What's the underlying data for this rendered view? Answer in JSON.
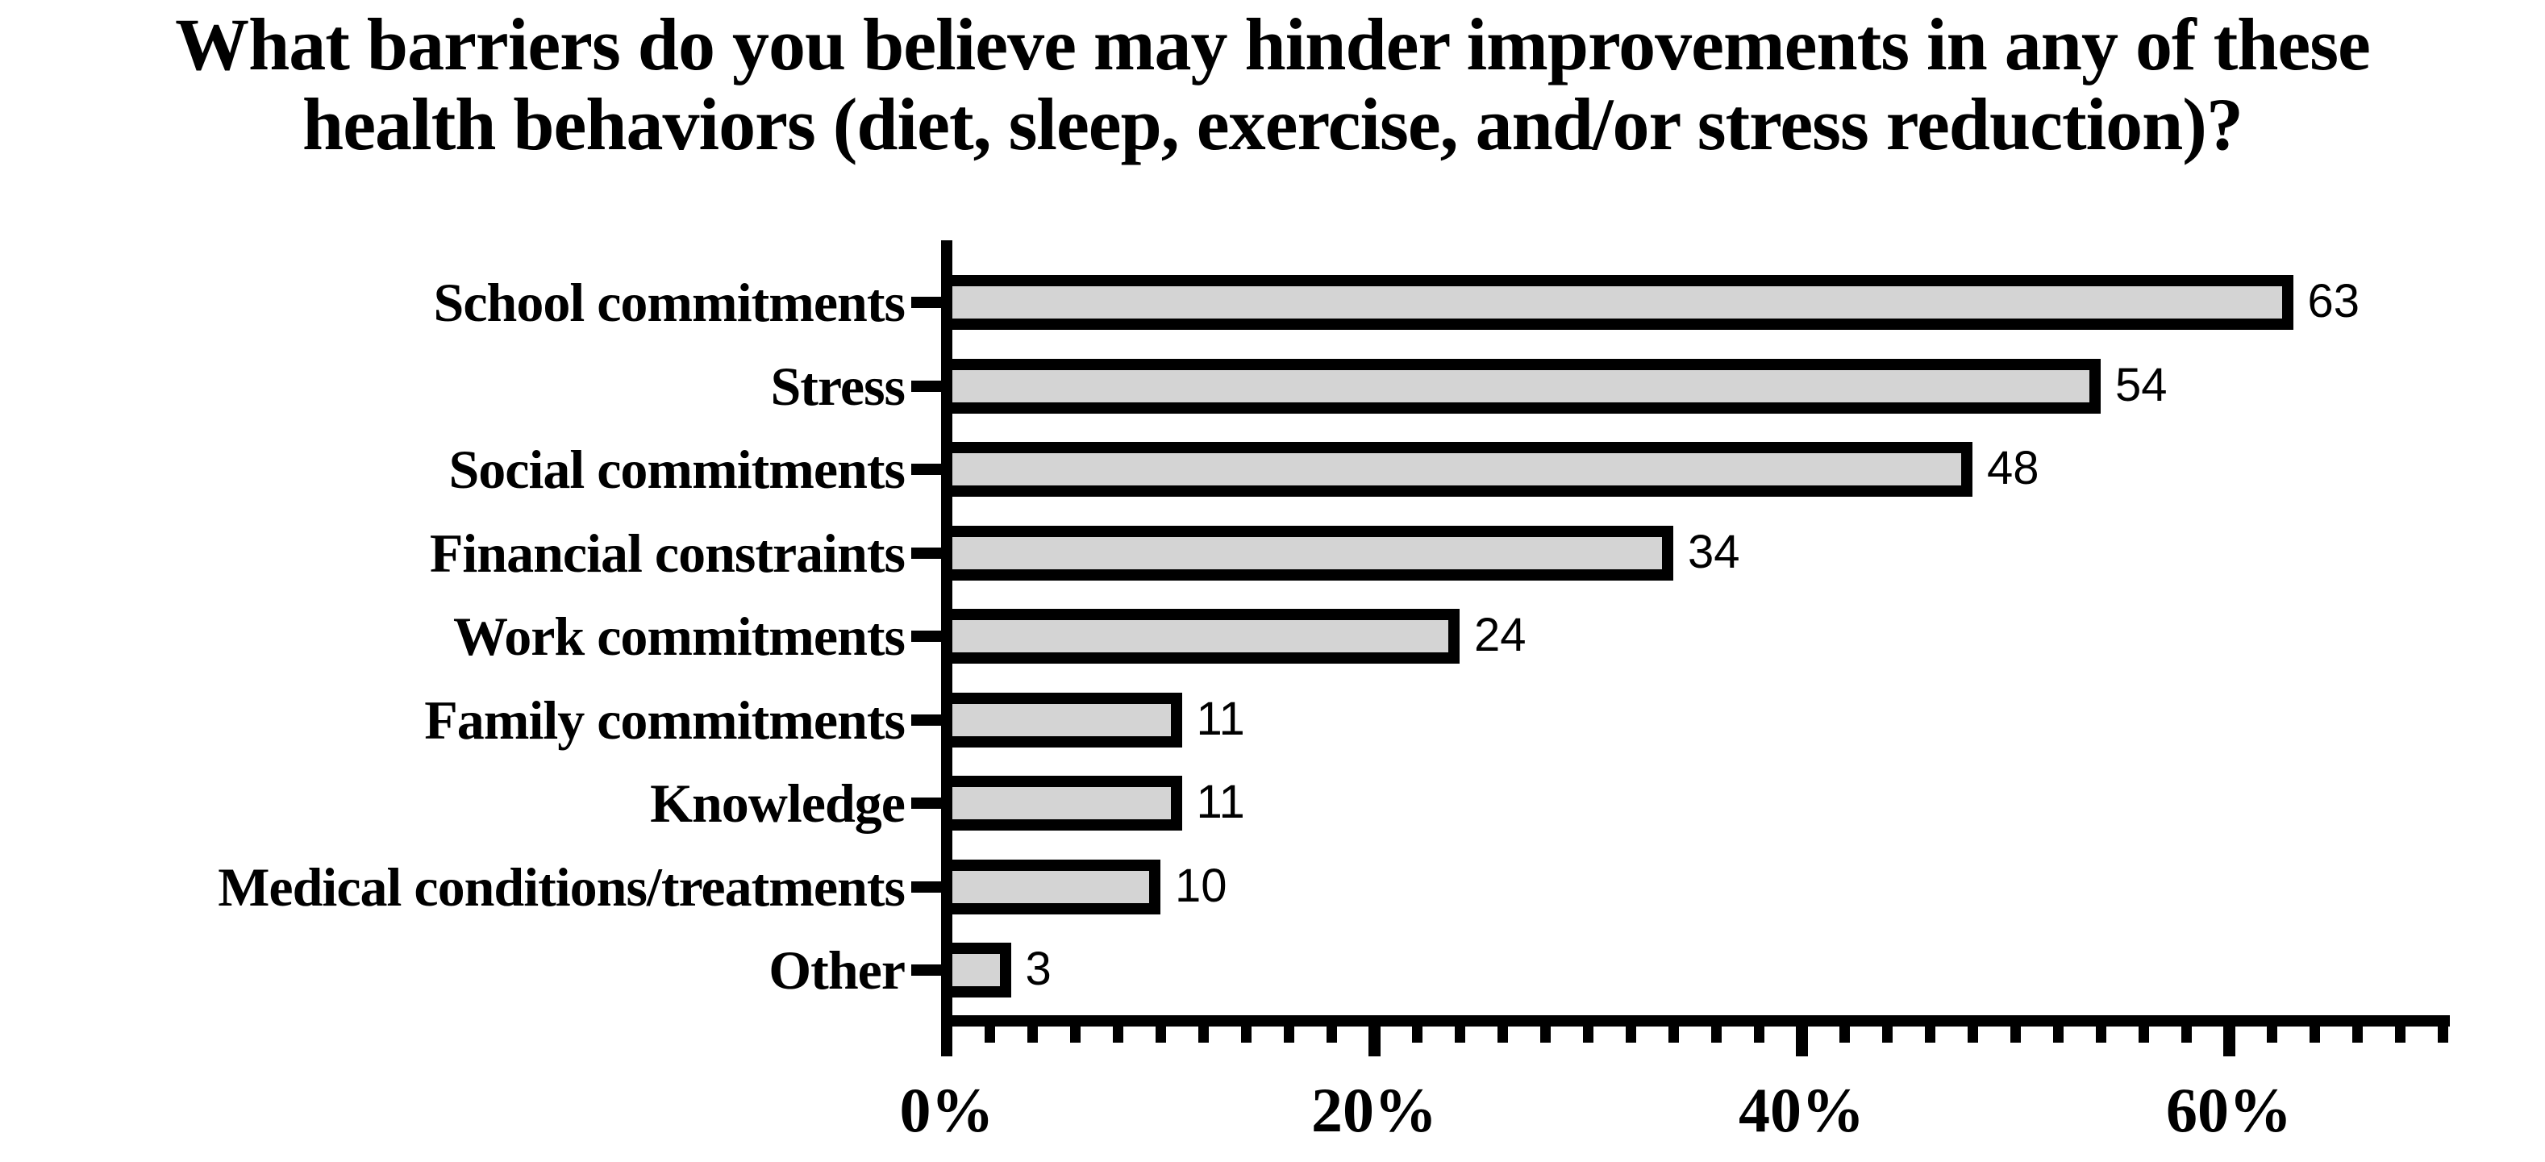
{
  "chart_data": {
    "type": "bar",
    "orientation": "horizontal",
    "title": "What barriers do you believe may hinder improvements in any of these health behaviors (diet, sleep, exercise, and/or stress reduction)?",
    "title_lines": [
      "What barriers do you believe may hinder improvements in any of these",
      "health behaviors (diet, sleep, exercise, and/or stress reduction)?"
    ],
    "categories": [
      "School commitments",
      "Stress",
      "Social commitments",
      "Financial constraints",
      "Work commitments",
      "Family commitments",
      "Knowledge",
      "Medical conditions/treatments",
      "Other"
    ],
    "values": [
      63,
      54,
      48,
      34,
      24,
      11,
      11,
      10,
      3
    ],
    "value_labels": [
      "63",
      "54",
      "48",
      "34",
      "24",
      "11",
      "11",
      "10",
      "3"
    ],
    "xlabel": "",
    "ylabel": "",
    "xlim": [
      0,
      70
    ],
    "x_major_ticks": [
      {
        "value": 0,
        "label": "0%"
      },
      {
        "value": 20,
        "label": "20%"
      },
      {
        "value": 40,
        "label": "40%"
      },
      {
        "value": 60,
        "label": "60%"
      }
    ],
    "x_minor_tick_step": 2,
    "grid": false,
    "legend": false,
    "colors": {
      "bar_fill": "#d4d4d4",
      "bar_border": "#000000",
      "axis": "#000000",
      "text": "#000000",
      "background": "#ffffff"
    }
  }
}
